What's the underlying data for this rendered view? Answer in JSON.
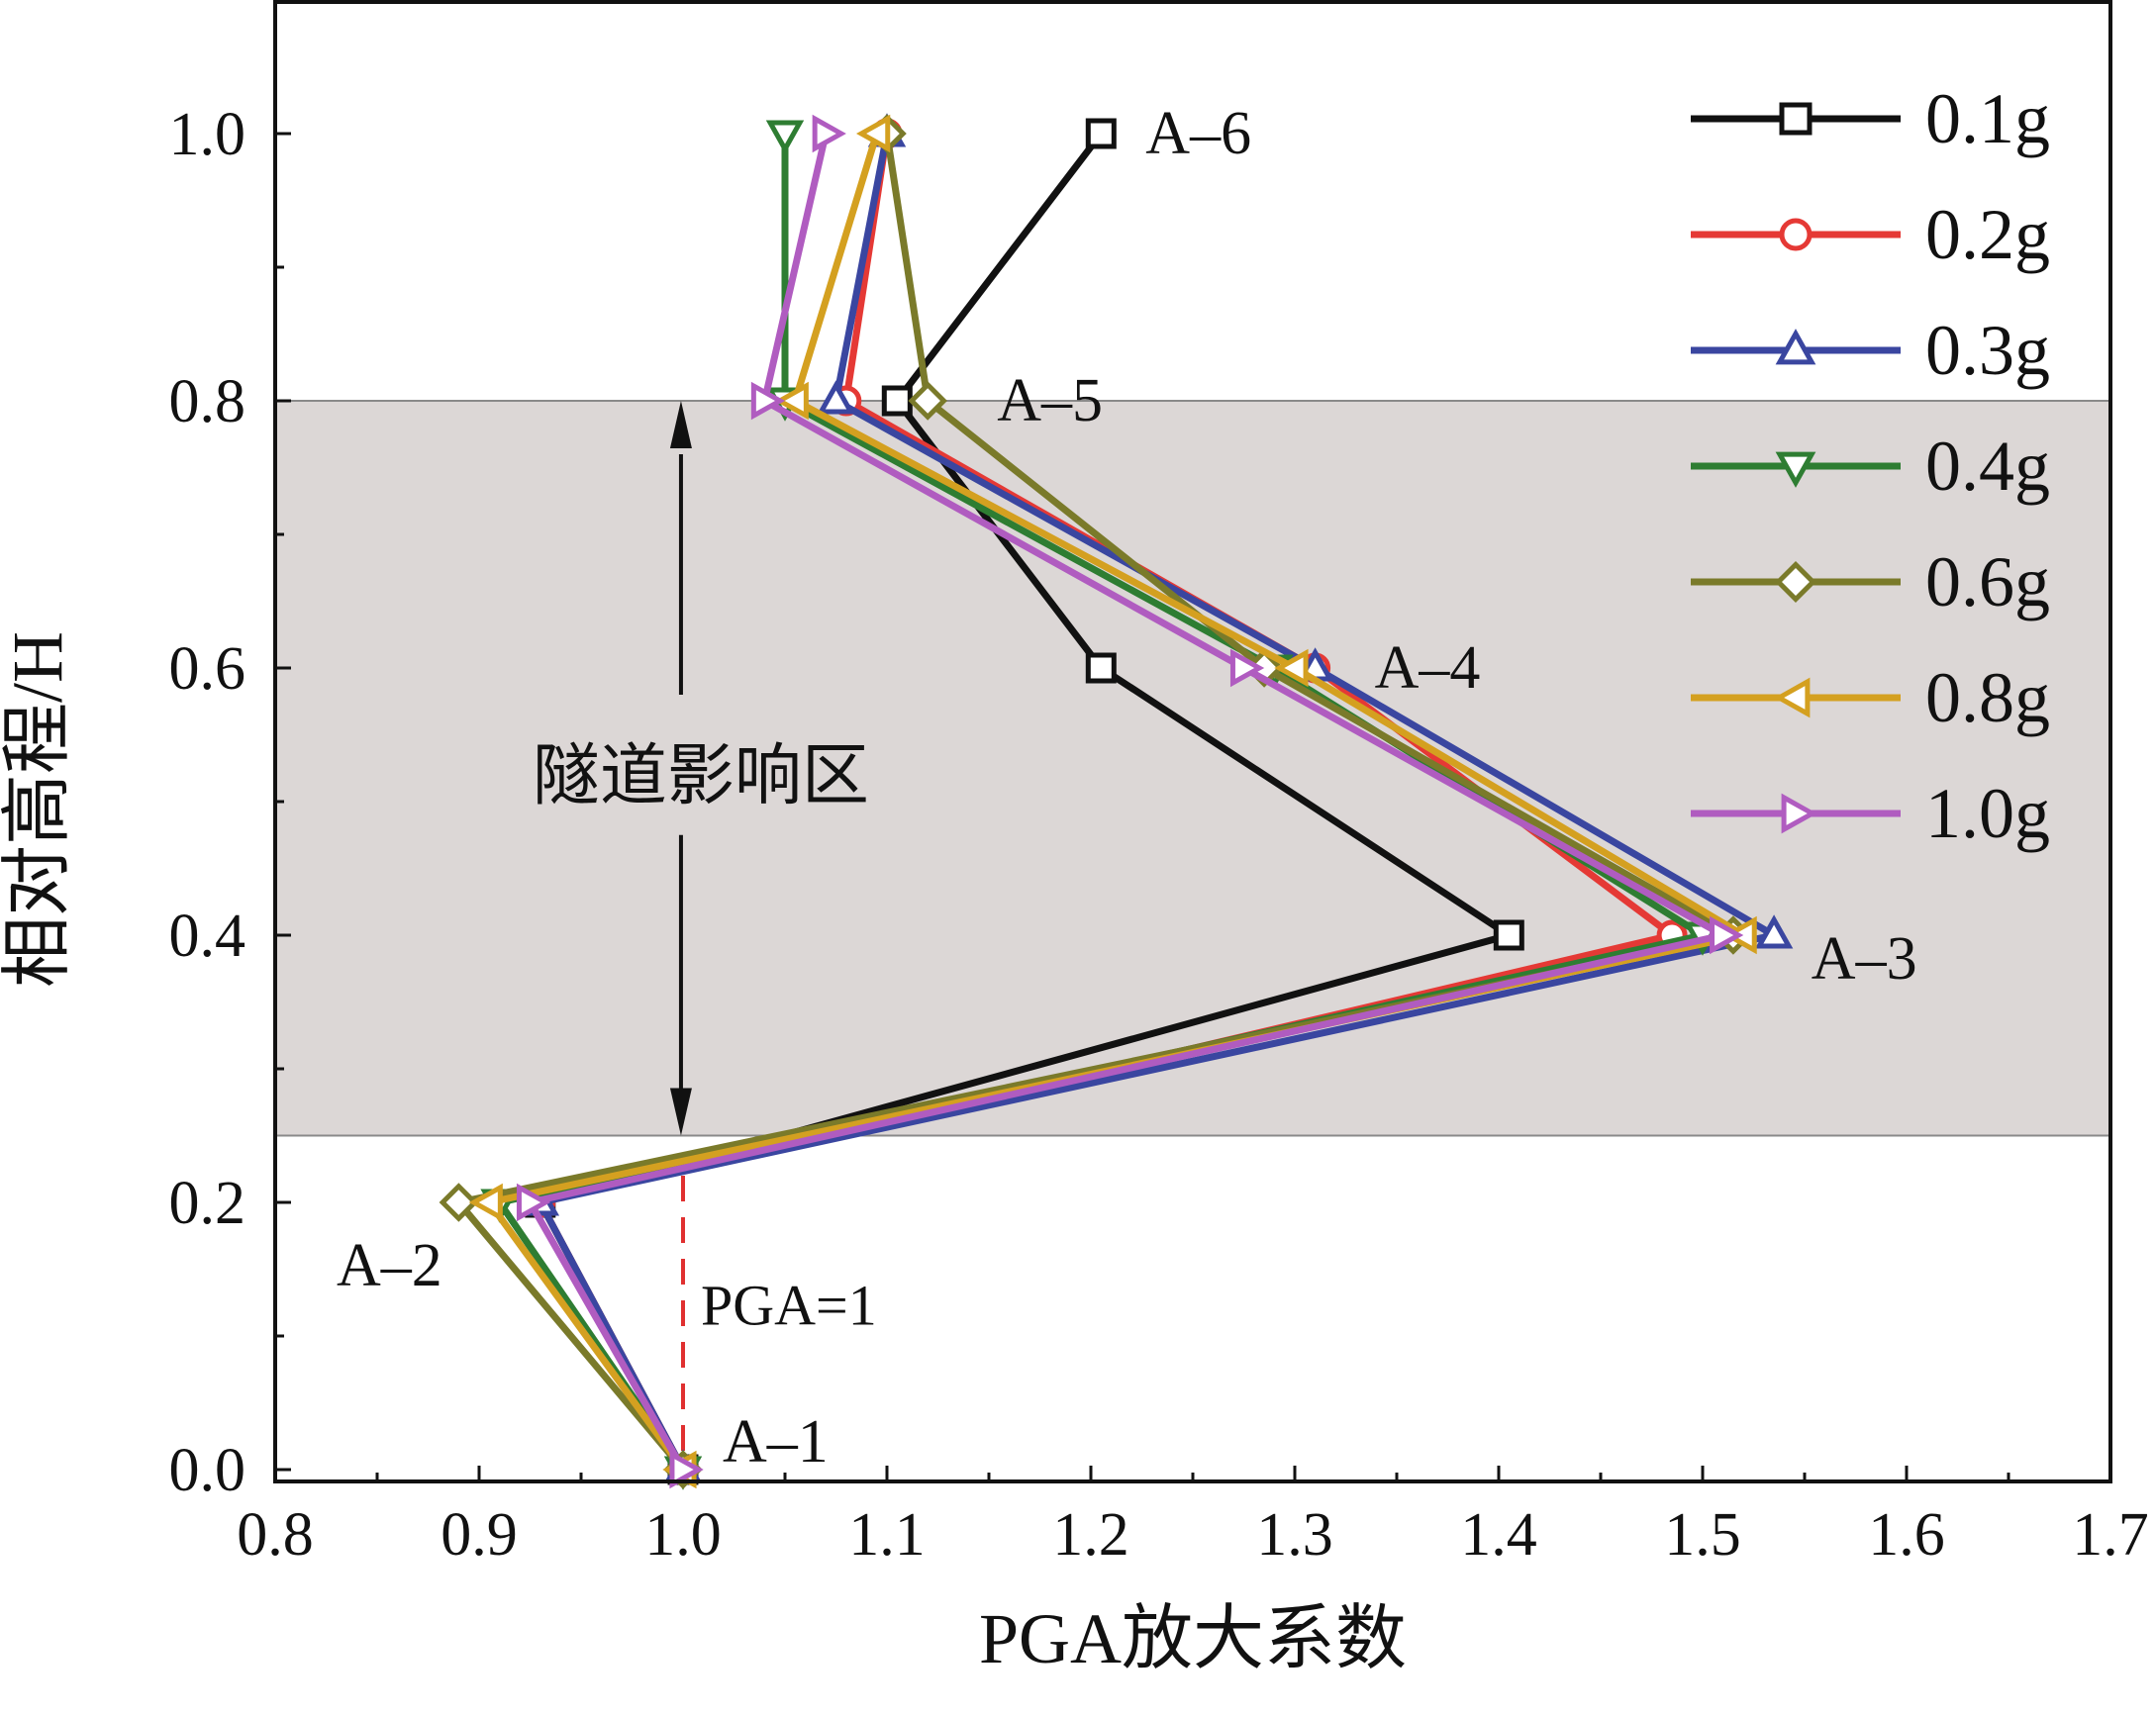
{
  "chart_data": {
    "type": "line",
    "xlabel": "PGA放大系数",
    "ylabel": "相对高程/H",
    "xlim": [
      0.8,
      1.7
    ],
    "ylim": [
      0.0,
      1.1
    ],
    "x_ticks": [
      0.8,
      0.9,
      1.0,
      1.1,
      1.2,
      1.3,
      1.4,
      1.5,
      1.6,
      1.7
    ],
    "y_ticks": [
      0.0,
      0.2,
      0.4,
      0.6,
      0.8,
      1.0
    ],
    "x_tick_labels": [
      "0.8",
      "0.9",
      "1.0",
      "1.1",
      "1.2",
      "1.3",
      "1.4",
      "1.5",
      "1.6",
      "1.7"
    ],
    "y_tick_labels": [
      "0.0",
      "0.2",
      "0.4",
      "0.6",
      "0.8",
      "1.0"
    ],
    "grid": false,
    "legend_position": "top-right",
    "shaded_region": {
      "y_from": 0.25,
      "y_to": 0.8,
      "color": "#dcd7d6",
      "label": "隧道影响区"
    },
    "reference_line": {
      "x": 1.0,
      "label": "PGA=1",
      "color": "#e03030"
    },
    "point_labels": [
      {
        "text": "A–1",
        "x": 1.0,
        "y": 0.0
      },
      {
        "text": "A–2",
        "x": 0.89,
        "y": 0.2
      },
      {
        "text": "A–3",
        "x": 1.53,
        "y": 0.4
      },
      {
        "text": "A–4",
        "x": 1.31,
        "y": 0.6
      },
      {
        "text": "A–5",
        "x": 1.12,
        "y": 0.8
      },
      {
        "text": "A–6",
        "x": 1.205,
        "y": 1.0
      }
    ],
    "y_levels": [
      0.0,
      0.2,
      0.4,
      0.6,
      0.8,
      1.0
    ],
    "series": [
      {
        "name": "0.1g",
        "color": "#111111",
        "marker": "square",
        "x": [
          1.0,
          0.93,
          1.405,
          1.205,
          1.105,
          1.205
        ]
      },
      {
        "name": "0.2g",
        "color": "#e53935",
        "marker": "circle",
        "x": [
          1.0,
          0.93,
          1.485,
          1.31,
          1.08,
          1.1
        ]
      },
      {
        "name": "0.3g",
        "color": "#3a46a0",
        "marker": "triangle-up",
        "x": [
          1.0,
          0.93,
          1.535,
          1.31,
          1.075,
          1.1
        ]
      },
      {
        "name": "0.4g",
        "color": "#2e7d32",
        "marker": "triangle-down",
        "x": [
          1.0,
          0.91,
          1.5,
          1.29,
          1.05,
          1.05
        ]
      },
      {
        "name": "0.6g",
        "color": "#7a7a2a",
        "marker": "diamond",
        "x": [
          1.0,
          0.89,
          1.515,
          1.285,
          1.12,
          1.1
        ]
      },
      {
        "name": "0.8g",
        "color": "#d4a020",
        "marker": "triangle-left",
        "x": [
          1.0,
          0.905,
          1.52,
          1.3,
          1.055,
          1.095
        ]
      },
      {
        "name": "1.0g",
        "color": "#b05cc0",
        "marker": "triangle-right",
        "x": [
          1.0,
          0.925,
          1.51,
          1.275,
          1.04,
          1.07
        ]
      }
    ]
  }
}
